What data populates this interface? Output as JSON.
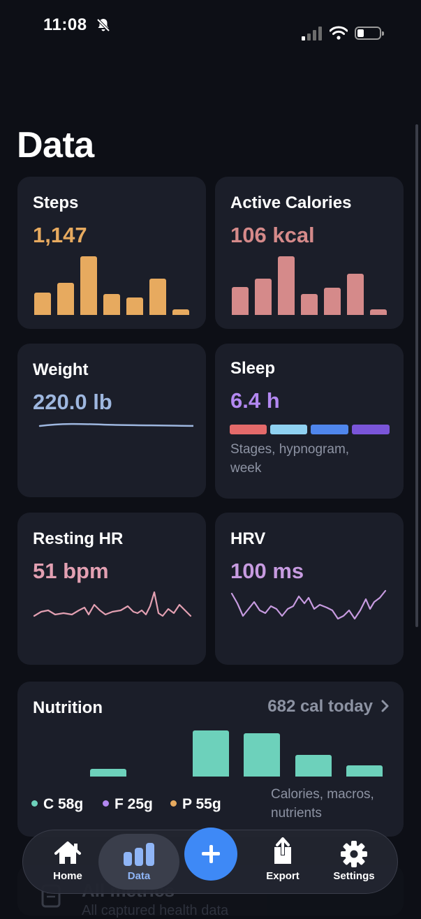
{
  "status_bar": {
    "time": "11:08"
  },
  "page": {
    "title": "Data"
  },
  "colors": {
    "steps": "#e7aa5f",
    "calories": "#d58a8a",
    "weight": "#9eb7df",
    "sleep": "#b388f1",
    "resting_hr": "#e3a0b2",
    "hrv": "#c79be0",
    "nutrition": "#6dd1bb",
    "accent": "#3e89f6"
  },
  "cards": {
    "steps": {
      "title": "Steps",
      "value": "1,147",
      "bars": [
        0.38,
        0.55,
        1.0,
        0.36,
        0.3,
        0.62,
        0.1
      ]
    },
    "calories": {
      "title": "Active Calories",
      "value": "106 kcal",
      "bars": [
        0.48,
        0.62,
        1.0,
        0.36,
        0.46,
        0.7,
        0.1
      ]
    },
    "weight": {
      "title": "Weight",
      "value": "220.0 lb"
    },
    "sleep": {
      "title": "Sleep",
      "value": "6.4 h",
      "note": "Stages, hypnogram, week",
      "stages": [
        {
          "color": "#e46a6a"
        },
        {
          "color": "#8fd1f1"
        },
        {
          "color": "#4f86ec"
        },
        {
          "color": "#7a55d9"
        }
      ]
    },
    "resting_hr": {
      "title": "Resting HR",
      "value": "51 bpm"
    },
    "hrv": {
      "title": "HRV",
      "value": "100 ms"
    }
  },
  "nutrition": {
    "title": "Nutrition",
    "summary": "682 cal today",
    "bars": [
      0,
      0.16,
      0,
      1.0,
      0.94,
      0.47,
      0.24
    ],
    "macros": [
      {
        "label": "C 58g",
        "color": "#6dd1bb"
      },
      {
        "label": "F 25g",
        "color": "#b388f1"
      },
      {
        "label": "P 55g",
        "color": "#e7aa5f"
      }
    ],
    "note": "Calories, macros, nutrients"
  },
  "peek_card": {
    "title": "All metrics",
    "subtitle": "All captured health data"
  },
  "tabs": [
    {
      "label": "Home",
      "icon": "house-icon"
    },
    {
      "label": "Data",
      "icon": "bar-chart-icon",
      "active": true
    },
    {
      "label": "Export",
      "icon": "share-icon"
    },
    {
      "label": "Settings",
      "icon": "gear-icon"
    }
  ]
}
